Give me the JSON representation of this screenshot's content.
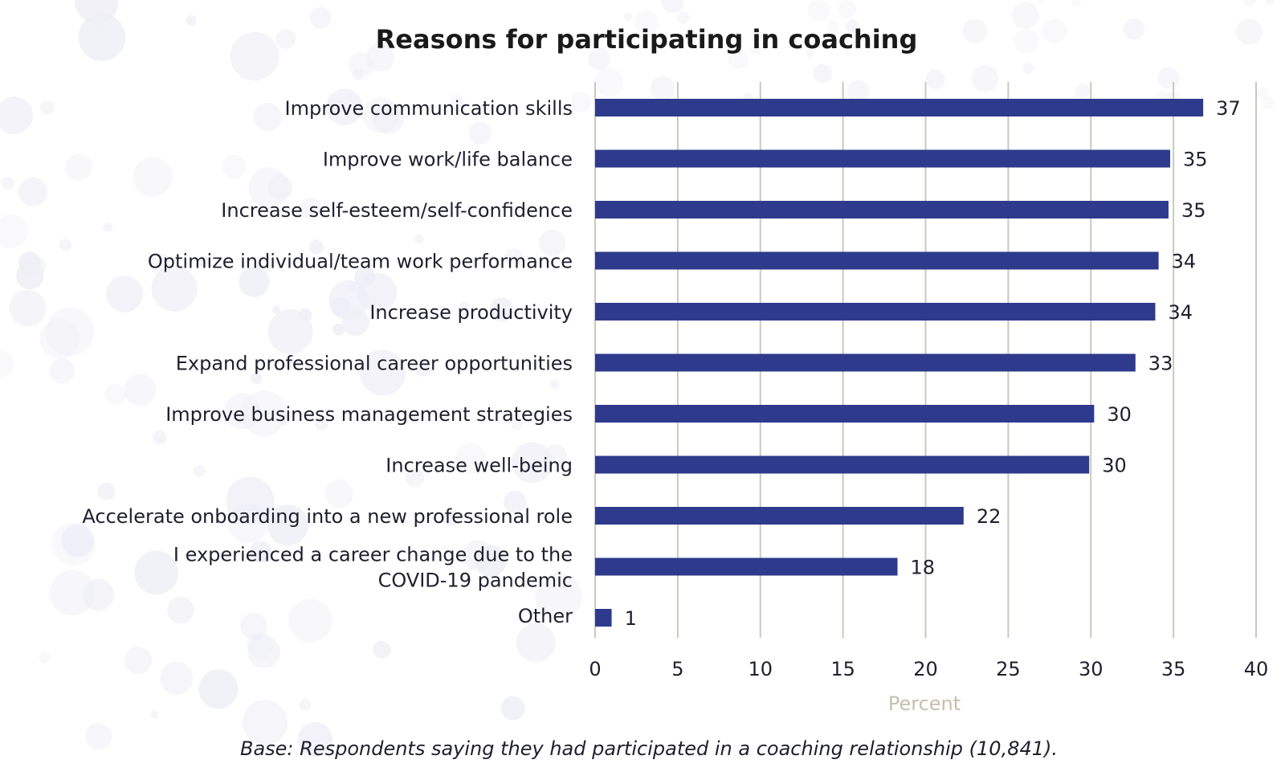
{
  "chart_data": {
    "type": "bar",
    "orientation": "horizontal",
    "title": "Reasons for participating in coaching",
    "xlabel": "Percent",
    "ylabel": "",
    "xlim": [
      0,
      40
    ],
    "xticks": [
      "0",
      "5",
      "10",
      "15",
      "20",
      "25",
      "30",
      "35",
      "40"
    ],
    "grid": true,
    "bar_color": "#2e3a8c",
    "categories": [
      [
        "Improve communication skills"
      ],
      [
        "Improve work/life balance"
      ],
      [
        "Increase self-esteem/self-confidence"
      ],
      [
        "Optimize individual/team work performance"
      ],
      [
        "Increase productivity"
      ],
      [
        "Expand professional career opportunities"
      ],
      [
        "Improve business management strategies"
      ],
      [
        "Increase well-being"
      ],
      [
        "Accelerate onboarding into a new professional role"
      ],
      [
        "I experienced a career change due to the",
        "COVID-19 pandemic"
      ],
      [
        "Other"
      ]
    ],
    "values": [
      36.8,
      34.8,
      34.7,
      34.1,
      33.9,
      32.7,
      30.2,
      29.9,
      22.3,
      18.3,
      1.0
    ],
    "value_labels": [
      "37",
      "35",
      "35",
      "34",
      "34",
      "33",
      "30",
      "30",
      "22",
      "18",
      "1"
    ],
    "footnote": "Base: Respondents saying they had participated in a coaching relationship (10,841)."
  }
}
